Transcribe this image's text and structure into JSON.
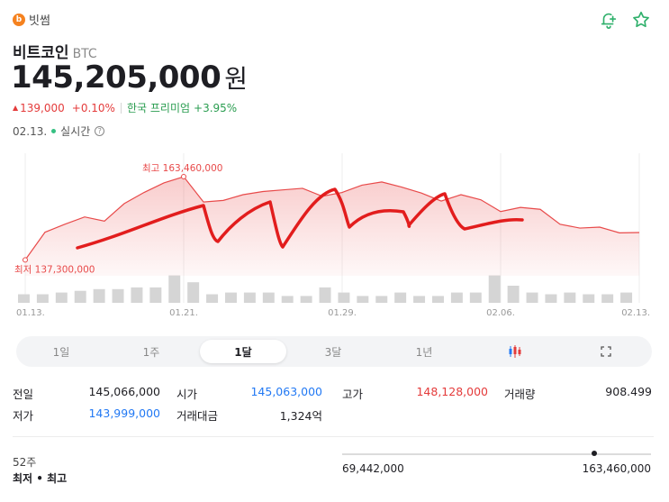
{
  "exchange": {
    "logo_letter": "b",
    "name": "빗썸"
  },
  "coin": {
    "name": "비트코인",
    "ticker": "BTC"
  },
  "price": {
    "value": "145,205,000",
    "unit": "원"
  },
  "change": {
    "amount": "139,000",
    "percent": "+0.10%",
    "premium_label": "한국 프리미엄",
    "premium_value": "+3.95%"
  },
  "status": {
    "date": "02.13.",
    "live_label": "실시간",
    "info_icon": "?"
  },
  "icons": {
    "alarm": "bell-plus-icon",
    "favorite": "star-icon"
  },
  "colors": {
    "up": "#e43b3b",
    "down": "#2279f4",
    "premium": "#2a9d50",
    "line": "#e84a4a"
  },
  "chart_data": {
    "type": "line",
    "title": "",
    "xlabel": "",
    "ylabel": "",
    "x_tick_labels": [
      "01.13.",
      "01.21.",
      "01.29.",
      "02.06.",
      "02.13."
    ],
    "x_tick_days": [
      0,
      8,
      16,
      24,
      31
    ],
    "series": [
      {
        "values": [
          137300000,
          146000000,
          148500000,
          150800000,
          149500000,
          155000000,
          158500000,
          161500000,
          163460000,
          155500000,
          156000000,
          157800000,
          158800000,
          159300000,
          159800000,
          157300000,
          158500000,
          160800000,
          161800000,
          160200000,
          158300000,
          155800000,
          157800000,
          156200000,
          152500000,
          153800000,
          153200000,
          148500000,
          147300000,
          147600000,
          145800000,
          145900000
        ]
      }
    ],
    "high": {
      "label": "최고",
      "value": "163,460,000"
    },
    "low": {
      "label": "최저",
      "value": "137,300,000"
    },
    "ylim": [
      134000000,
      168000000
    ],
    "volume_bars": [
      0.25,
      0.25,
      0.3,
      0.35,
      0.4,
      0.4,
      0.45,
      0.45,
      0.8,
      0.6,
      0.25,
      0.3,
      0.3,
      0.3,
      0.2,
      0.2,
      0.45,
      0.3,
      0.2,
      0.2,
      0.3,
      0.2,
      0.2,
      0.3,
      0.3,
      0.8,
      0.5,
      0.3,
      0.25,
      0.3,
      0.25,
      0.25,
      0.3
    ],
    "grid": true
  },
  "periods": [
    {
      "label": "1일"
    },
    {
      "label": "1주"
    },
    {
      "label": "1달",
      "active": true
    },
    {
      "label": "3달"
    },
    {
      "label": "1년"
    },
    {
      "label": "",
      "icon": "candlestick-icon"
    },
    {
      "label": "",
      "icon": "fullscreen-icon"
    }
  ],
  "stats": {
    "prev_close_label": "전일",
    "prev_close": "145,066,000",
    "open_label": "시가",
    "open": "145,063,000",
    "high_label": "고가",
    "high": "148,128,000",
    "volume_label": "거래량",
    "volume": "908.499",
    "low_label": "저가",
    "low": "143,999,000",
    "trade_value_label": "거래대금",
    "trade_value": "1,324억"
  },
  "week52": {
    "label_line1": "52주",
    "label_line2": "최저 • 최고",
    "min": "69,442,000",
    "max": "163,460,000",
    "position": 1.0
  }
}
